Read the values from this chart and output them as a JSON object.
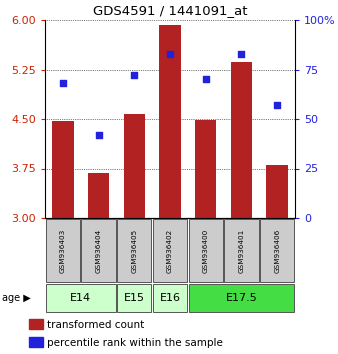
{
  "title": "GDS4591 / 1441091_at",
  "samples": [
    "GSM936403",
    "GSM936404",
    "GSM936405",
    "GSM936402",
    "GSM936400",
    "GSM936401",
    "GSM936406"
  ],
  "bar_values": [
    4.47,
    3.68,
    4.57,
    5.93,
    4.48,
    5.36,
    3.8
  ],
  "dot_values": [
    68,
    42,
    72,
    83,
    70,
    83,
    57
  ],
  "ylim_left": [
    3,
    6
  ],
  "ylim_right": [
    0,
    100
  ],
  "yticks_left": [
    3,
    3.75,
    4.5,
    5.25,
    6
  ],
  "yticks_right": [
    0,
    25,
    50,
    75,
    100
  ],
  "bar_color": "#b22222",
  "dot_color": "#2222dd",
  "age_groups": [
    {
      "label": "E14",
      "start": 0,
      "end": 1,
      "color": "#ccffcc"
    },
    {
      "label": "E15",
      "start": 2,
      "end": 2,
      "color": "#ccffcc"
    },
    {
      "label": "E16",
      "start": 3,
      "end": 3,
      "color": "#ccffcc"
    },
    {
      "label": "E17.5",
      "start": 4,
      "end": 6,
      "color": "#44dd44"
    }
  ],
  "sample_box_color": "#cccccc",
  "legend_red_label": "transformed count",
  "legend_blue_label": "percentile rank within the sample"
}
